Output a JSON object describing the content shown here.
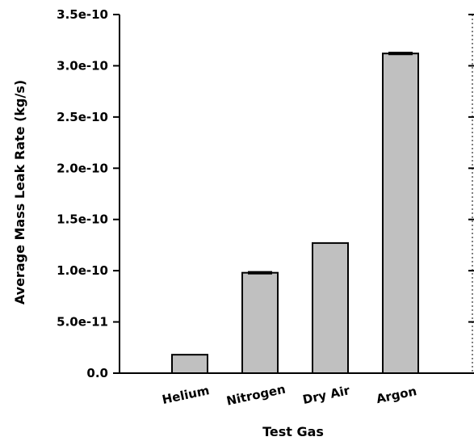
{
  "chart_data": {
    "type": "bar",
    "title": "",
    "xlabel": "Test Gas",
    "ylabel": "Average Mass Leak Rate (kg/s)",
    "categories": [
      "Helium",
      "Nitrogen",
      "Dry Air",
      "Argon"
    ],
    "series": [
      {
        "values": [
          1.8e-11,
          9.8e-11,
          1.27e-10,
          3.12e-10
        ],
        "error": [
          0,
          1e-12,
          0,
          1e-12
        ],
        "color": "#c0c0c0"
      }
    ],
    "ylim": [
      0,
      3.5e-10
    ],
    "yticks": [
      {
        "value": 0,
        "label": "0.0"
      },
      {
        "value": 5e-11,
        "label": "5.0e-11"
      },
      {
        "value": 1e-10,
        "label": "1.0e-10"
      },
      {
        "value": 1.5e-10,
        "label": "1.5e-10"
      },
      {
        "value": 2e-10,
        "label": "2.0e-10"
      },
      {
        "value": 2.5e-10,
        "label": "2.5e-10"
      },
      {
        "value": 3e-10,
        "label": "3.0e-10"
      },
      {
        "value": 3.5e-10,
        "label": "3.5e-10"
      }
    ],
    "grid": false,
    "legend": "none"
  }
}
